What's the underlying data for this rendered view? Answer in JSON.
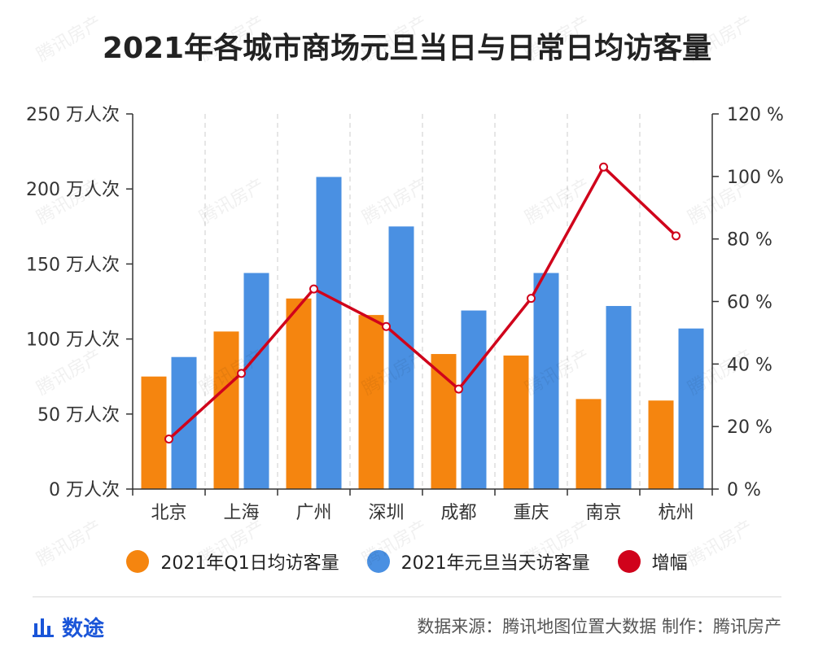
{
  "title": "2021年各城市商场元旦当日与日常日均访客量",
  "chart_data": {
    "type": "bar",
    "categories": [
      "北京",
      "上海",
      "广州",
      "深圳",
      "成都",
      "重庆",
      "南京",
      "杭州"
    ],
    "series": [
      {
        "name": "2021年Q1日均访客量",
        "kind": "bar",
        "axis": "left",
        "color": "#F5850F",
        "values": [
          75,
          105,
          127,
          116,
          90,
          89,
          60,
          59
        ]
      },
      {
        "name": "2021年元旦当天访客量",
        "kind": "bar",
        "axis": "left",
        "color": "#4A90E2",
        "values": [
          88,
          144,
          208,
          175,
          119,
          144,
          122,
          107
        ]
      },
      {
        "name": "增幅",
        "kind": "line",
        "axis": "right",
        "color": "#D0021B",
        "values": [
          16,
          37,
          64,
          52,
          32,
          61,
          103,
          81
        ]
      }
    ],
    "left_axis": {
      "range": [
        0,
        250
      ],
      "ticks": [
        0,
        50,
        100,
        150,
        200,
        250
      ],
      "unit": "万人次"
    },
    "right_axis": {
      "range": [
        0,
        120
      ],
      "ticks": [
        0,
        20,
        40,
        60,
        80,
        100,
        120
      ],
      "unit": "%"
    },
    "grid": "vertical-dashed",
    "legend_position": "bottom"
  },
  "legend": [
    {
      "label": "2021年Q1日均访客量",
      "color": "#F5850F"
    },
    {
      "label": "2021年元旦当天访客量",
      "color": "#4A90E2"
    },
    {
      "label": "增幅",
      "color": "#D0021B"
    }
  ],
  "footer": {
    "brand": "数途",
    "brand_icon": "bar-chart-icon",
    "source": "数据来源：腾讯地图位置大数据  制作：腾讯房产"
  },
  "watermark": "腾讯房产"
}
